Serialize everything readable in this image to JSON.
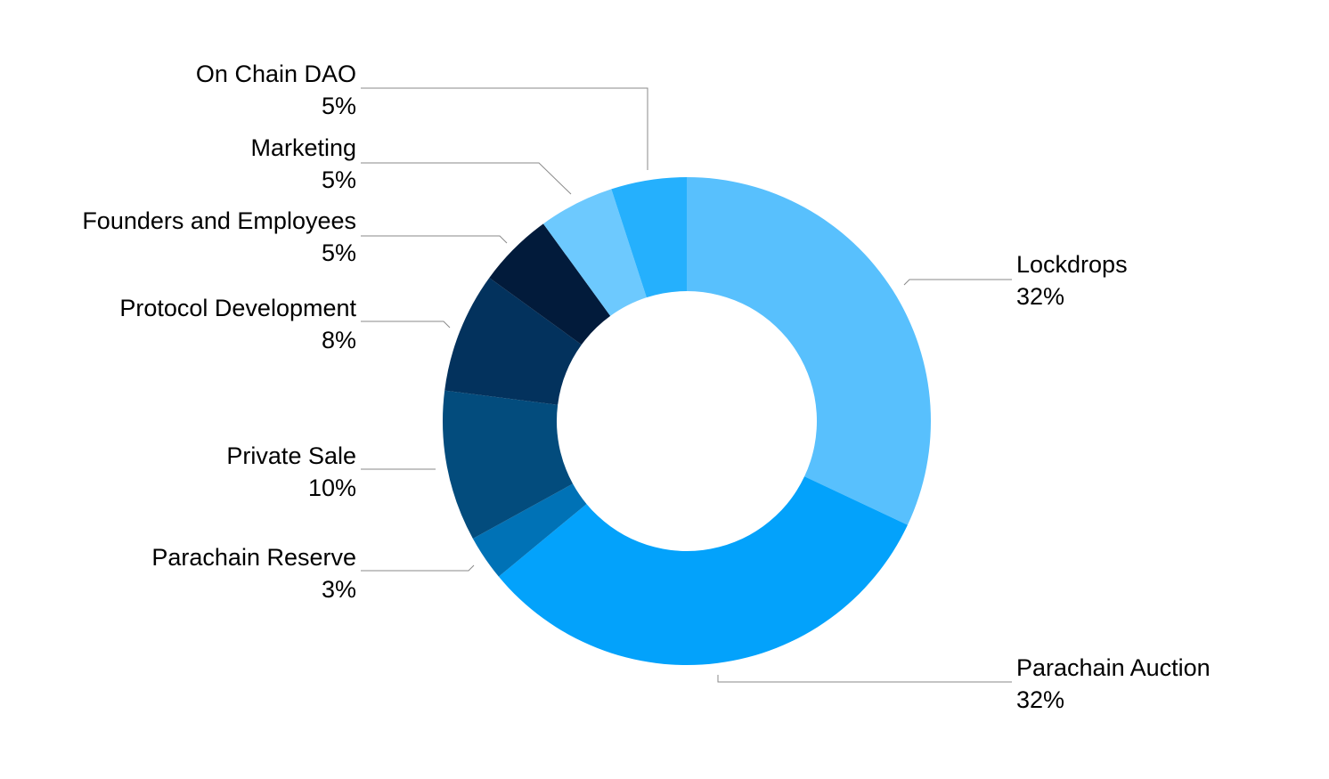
{
  "chart_data": {
    "type": "pie",
    "variant": "donut",
    "legend": "none",
    "grid": false,
    "slices": [
      {
        "label": "Lockdrops",
        "pct_text": "32%",
        "value": 32,
        "color": "#58c0fd"
      },
      {
        "label": "Parachain Auction",
        "pct_text": "32%",
        "value": 32,
        "color": "#03a2fb"
      },
      {
        "label": "Parachain Reserve",
        "pct_text": "3%",
        "value": 3,
        "color": "#0072b6"
      },
      {
        "label": "Private Sale",
        "pct_text": "10%",
        "value": 10,
        "color": "#034c7d"
      },
      {
        "label": "Protocol Development",
        "pct_text": "8%",
        "value": 8,
        "color": "#03325d"
      },
      {
        "label": "Founders and Employees",
        "pct_text": "5%",
        "value": 5,
        "color": "#021b3b"
      },
      {
        "label": "Marketing",
        "pct_text": "5%",
        "value": 5,
        "color": "#6dc9fe"
      },
      {
        "label": "On Chain DAO",
        "pct_text": "5%",
        "value": 5,
        "color": "#25b0fd"
      }
    ]
  }
}
